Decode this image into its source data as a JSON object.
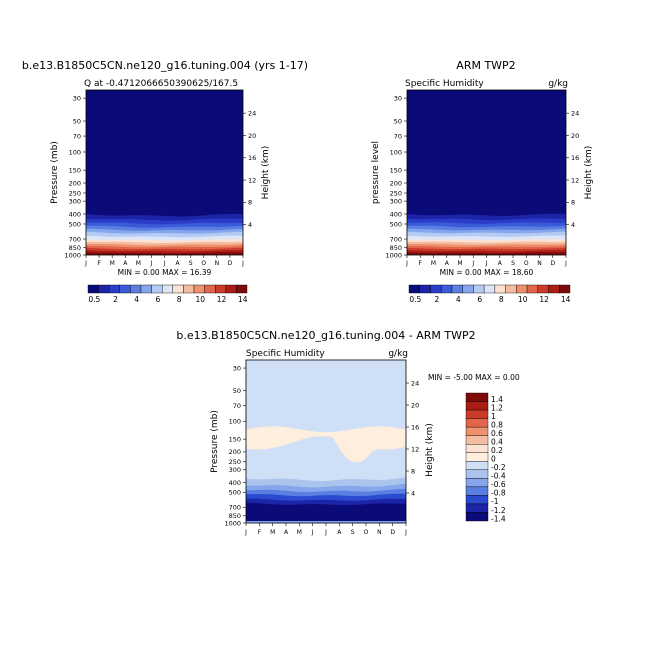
{
  "chart_data": [
    {
      "type": "heatmap",
      "title": "b.e13.B1850C5CN.ne120_g16.tuning.004 (yrs 1-17)",
      "subtitle_left": "Q at -0.4712066650390625/167.5",
      "subtitle_right": "",
      "ylabel": "Pressure (mb)",
      "ylabel_right": "Height (km)",
      "x": [
        "J",
        "F",
        "M",
        "A",
        "M",
        "J",
        "J",
        "A",
        "S",
        "O",
        "N",
        "D",
        "J"
      ],
      "pressure_ticks": [
        "30",
        "50",
        "70",
        "100",
        "150",
        "200",
        "250",
        "300",
        "400",
        "500",
        "700",
        "850",
        "1000"
      ],
      "height_ticks": [
        "24",
        "20",
        "16",
        "12",
        "8",
        "4"
      ],
      "stats": "MIN =    0.00 MAX =   16.39",
      "min": 0.0,
      "max": 16.39,
      "contour_levels": [
        0.5,
        1,
        2,
        3,
        4,
        5,
        6,
        7,
        8,
        9,
        10,
        11,
        12,
        13,
        14
      ],
      "colorbar_labels": [
        "0.5",
        "2",
        "4",
        "6",
        "8",
        "10",
        "12",
        "14"
      ]
    },
    {
      "type": "heatmap",
      "title": "ARM TWP2",
      "subtitle_left": "Specific Humidity",
      "subtitle_right": "g/kg",
      "ylabel": "pressure level",
      "ylabel_right": "Height (km)",
      "x": [
        "J",
        "F",
        "M",
        "A",
        "M",
        "J",
        "J",
        "A",
        "S",
        "O",
        "N",
        "D",
        "J"
      ],
      "pressure_ticks": [
        "30",
        "50",
        "70",
        "100",
        "150",
        "200",
        "250",
        "300",
        "400",
        "500",
        "700",
        "850",
        "1000"
      ],
      "height_ticks": [
        "24",
        "20",
        "16",
        "12",
        "8",
        "4"
      ],
      "stats": "MIN =    0.00 MAX =   18.60",
      "min": 0.0,
      "max": 18.6,
      "contour_levels": [
        0.5,
        1,
        2,
        3,
        4,
        5,
        6,
        7,
        8,
        9,
        10,
        11,
        12,
        13,
        14
      ],
      "colorbar_labels": [
        "0.5",
        "2",
        "4",
        "6",
        "8",
        "10",
        "12",
        "14"
      ]
    },
    {
      "type": "heatmap",
      "title": "b.e13.B1850C5CN.ne120_g16.tuning.004 - ARM TWP2",
      "subtitle_left": "Specific Humidity",
      "subtitle_right": "g/kg",
      "ylabel": "Pressure (mb)",
      "ylabel_right": "Height (km)",
      "x": [
        "J",
        "F",
        "M",
        "A",
        "M",
        "J",
        "J",
        "A",
        "S",
        "O",
        "N",
        "D",
        "J"
      ],
      "pressure_ticks": [
        "30",
        "50",
        "70",
        "100",
        "150",
        "200",
        "250",
        "300",
        "400",
        "500",
        "700",
        "850",
        "1000"
      ],
      "height_ticks": [
        "24",
        "20",
        "16",
        "12",
        "8",
        "4"
      ],
      "stats": "MIN =   -5.00 MAX =    0.00",
      "min": -5.0,
      "max": 0.0,
      "contour_levels": [
        -1.4,
        -1.2,
        -1,
        -0.8,
        -0.6,
        -0.4,
        -0.2,
        0,
        0.2,
        0.4,
        0.6,
        0.8,
        1,
        1.2,
        1.4
      ],
      "colorbar_labels": [
        "1.4",
        "1.2",
        "1",
        "0.8",
        "0.6",
        "0.4",
        "0.2",
        "0",
        "-0.2",
        "-0.4",
        "-0.6",
        "-0.8",
        "-1",
        "-1.2",
        "-1.4"
      ]
    }
  ],
  "colors": {
    "humidity_scale": [
      "#0a0a78",
      "#1c24a8",
      "#2a3cc8",
      "#3a5ad8",
      "#5a7ee2",
      "#86a6ec",
      "#b4cbf4",
      "#dde6f8",
      "#fbe2d2",
      "#f4bca0",
      "#ee926e",
      "#e2664c",
      "#cc3a2a",
      "#aa1c16",
      "#7e0a0a"
    ],
    "difference_scale": [
      "#7e0a0a",
      "#aa1c16",
      "#cc3a2a",
      "#e2664c",
      "#ee926e",
      "#f4bca0",
      "#fbe2d2",
      "#fdeedd",
      "#cfe0f6",
      "#aac4ee",
      "#86a6ec",
      "#5a7ee2",
      "#2a4ad0",
      "#1c24a8",
      "#0a0a78"
    ]
  }
}
